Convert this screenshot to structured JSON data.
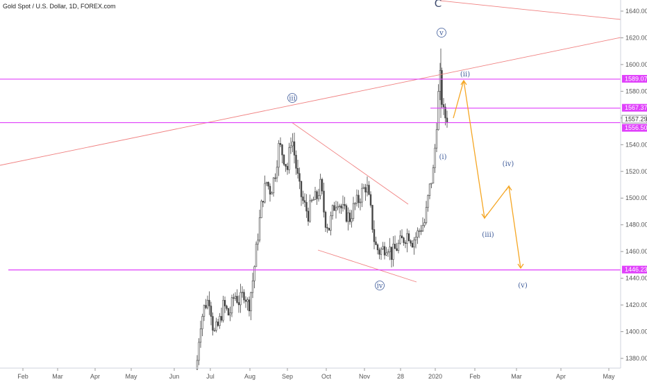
{
  "header": {
    "symbol_title": "Gold Spot / U.S. Dollar, 1D, FOREX.com"
  },
  "chart_data": {
    "type": "candlestick",
    "ylim": [
      1370,
      1650
    ],
    "y_ticks": [
      1380,
      1400,
      1420,
      1440,
      1460,
      1480,
      1500,
      1520,
      1540,
      1560,
      1580,
      1600,
      1620,
      1640
    ],
    "x_labels": [
      "Feb",
      "Mar",
      "Apr",
      "May",
      "Jun",
      "Jul",
      "Aug",
      "Sep",
      "Oct",
      "Nov",
      "28",
      "2020",
      "Feb",
      "Mar",
      "Apr",
      "May"
    ],
    "price_levels": [
      {
        "value": 1589.07,
        "label": "1589.07",
        "color": "#e040fb",
        "kind": "pink"
      },
      {
        "value": 1567.37,
        "label": "1567.37",
        "color": "#e040fb",
        "kind": "pink"
      },
      {
        "value": 1557.29,
        "label": "1557.29",
        "color": "#787b86",
        "kind": "gray"
      },
      {
        "value": 1556.5,
        "label": "1556.50",
        "color": "#e040fb",
        "kind": "pink"
      },
      {
        "value": 1446.23,
        "label": "1446.23",
        "color": "#e040fb",
        "kind": "pink"
      }
    ],
    "wave_labels": [
      {
        "text": "iii",
        "circled": true,
        "color": "#3d5a99"
      },
      {
        "text": "iv",
        "circled": true,
        "color": "#3d5a99"
      },
      {
        "text": "v",
        "circled": true,
        "color": "#3d5a99"
      },
      {
        "text": "C",
        "circled": false,
        "color": "#3d4a6e"
      },
      {
        "text": "(i)",
        "circled": false,
        "color": "#3d5a99"
      },
      {
        "text": "(ii)",
        "circled": false,
        "color": "#3d5a99"
      },
      {
        "text": "(iii)",
        "circled": false,
        "color": "#3d5a99"
      },
      {
        "text": "(iv)",
        "circled": false,
        "color": "#3d5a99"
      },
      {
        "text": "(v)",
        "circled": false,
        "color": "#3d5a99"
      }
    ],
    "colors": {
      "candles": "#444444",
      "projection": "#f5a623",
      "trendlines": "#f08080",
      "levels": "#e040fb"
    }
  }
}
